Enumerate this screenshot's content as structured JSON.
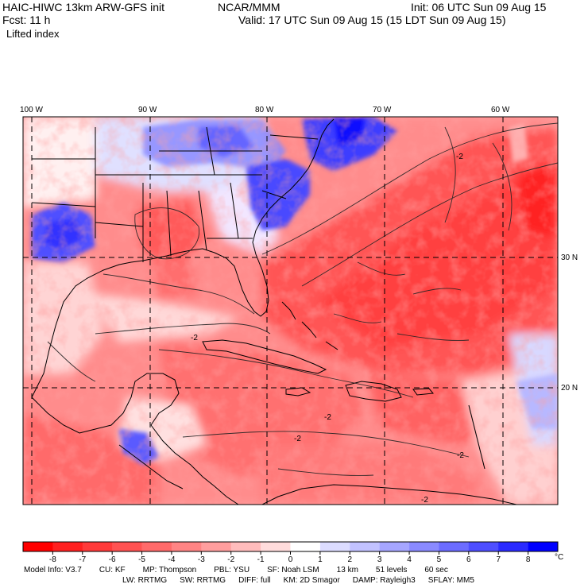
{
  "header": {
    "title": "HAIC-HIWC 13km ARW-GFS init",
    "org": "NCAR/MMM",
    "init": "Init: 06 UTC Sun 09 Aug 15",
    "fcst": "Fcst:    11 h",
    "valid": "Valid: 17 UTC Sun 09 Aug 15 (15 LDT Sun 09 Aug 15)",
    "field": "Lifted index"
  },
  "map": {
    "lon_labels": [
      "100 W",
      "90 W",
      "80 W",
      "70 W",
      "60 W"
    ],
    "lat_labels": [
      "30 N",
      "20 N"
    ],
    "contour_labels": [
      "-2",
      "-2",
      "-2",
      "-2",
      "-2",
      "-2"
    ]
  },
  "colorbar": {
    "unit": "°C",
    "ticks": [
      "-8",
      "-7",
      "-6",
      "-5",
      "-4",
      "-3",
      "-2",
      "-1",
      "0",
      "1",
      "2",
      "3",
      "4",
      "5",
      "6",
      "7",
      "8"
    ],
    "colors": [
      "#ff0000",
      "#ff2020",
      "#ff3a3a",
      "#ff5252",
      "#ff6a6a",
      "#ff8484",
      "#ff9e9e",
      "#ffbcbc",
      "#ffdcdc",
      "#ffffff",
      "#dcdcff",
      "#c2c2ff",
      "#a6a6ff",
      "#8a8aff",
      "#6c6cff",
      "#4e4eff",
      "#2a2aff",
      "#0000ff"
    ]
  },
  "footer": {
    "line1": [
      "Model Info: V3.7",
      "CU: KF",
      "MP: Thompson",
      "PBL: YSU",
      "SF: Noah LSM",
      "13 km",
      "51 levels",
      "60 sec"
    ],
    "line2": [
      "LW: RRTMG",
      "SW: RRTMG",
      "DIFF: full",
      "KM: 2D Smagor",
      "DAMP: Rayleigh3",
      "SFLAY: MM5"
    ]
  }
}
